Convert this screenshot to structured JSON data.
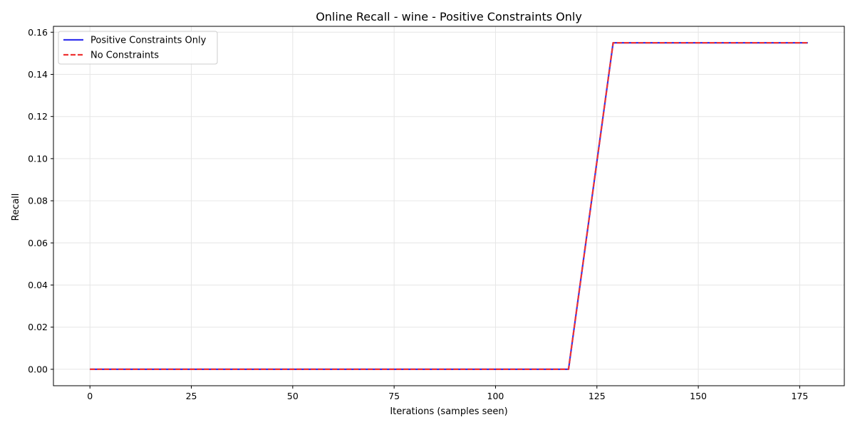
{
  "chart_data": {
    "type": "line",
    "title": "Online Recall - wine - Positive Constraints Only",
    "xlabel": "Iterations (samples seen)",
    "ylabel": "Recall",
    "xlim": [
      -9,
      186
    ],
    "ylim": [
      -0.0078,
      0.1628
    ],
    "x_ticks": [
      0,
      25,
      50,
      75,
      100,
      125,
      150,
      175
    ],
    "y_ticks": [
      0.0,
      0.02,
      0.04,
      0.06,
      0.08,
      0.1,
      0.12,
      0.14,
      0.16
    ],
    "x_tick_labels": [
      "0",
      "25",
      "50",
      "75",
      "100",
      "125",
      "150",
      "175"
    ],
    "y_tick_labels": [
      "0.00",
      "0.02",
      "0.04",
      "0.06",
      "0.08",
      "0.10",
      "0.12",
      "0.14",
      "0.16"
    ],
    "grid": true,
    "legend_position": "upper-left",
    "series": [
      {
        "name": "Positive Constraints Only",
        "color": "#3333ee",
        "style": "solid",
        "x": [
          0,
          118,
          129,
          177
        ],
        "y": [
          0.0,
          0.0,
          0.155,
          0.155
        ]
      },
      {
        "name": "No Constraints",
        "color": "#ee3333",
        "style": "dashed",
        "x": [
          0,
          118,
          129,
          177
        ],
        "y": [
          0.0,
          0.0,
          0.155,
          0.155
        ]
      }
    ]
  }
}
